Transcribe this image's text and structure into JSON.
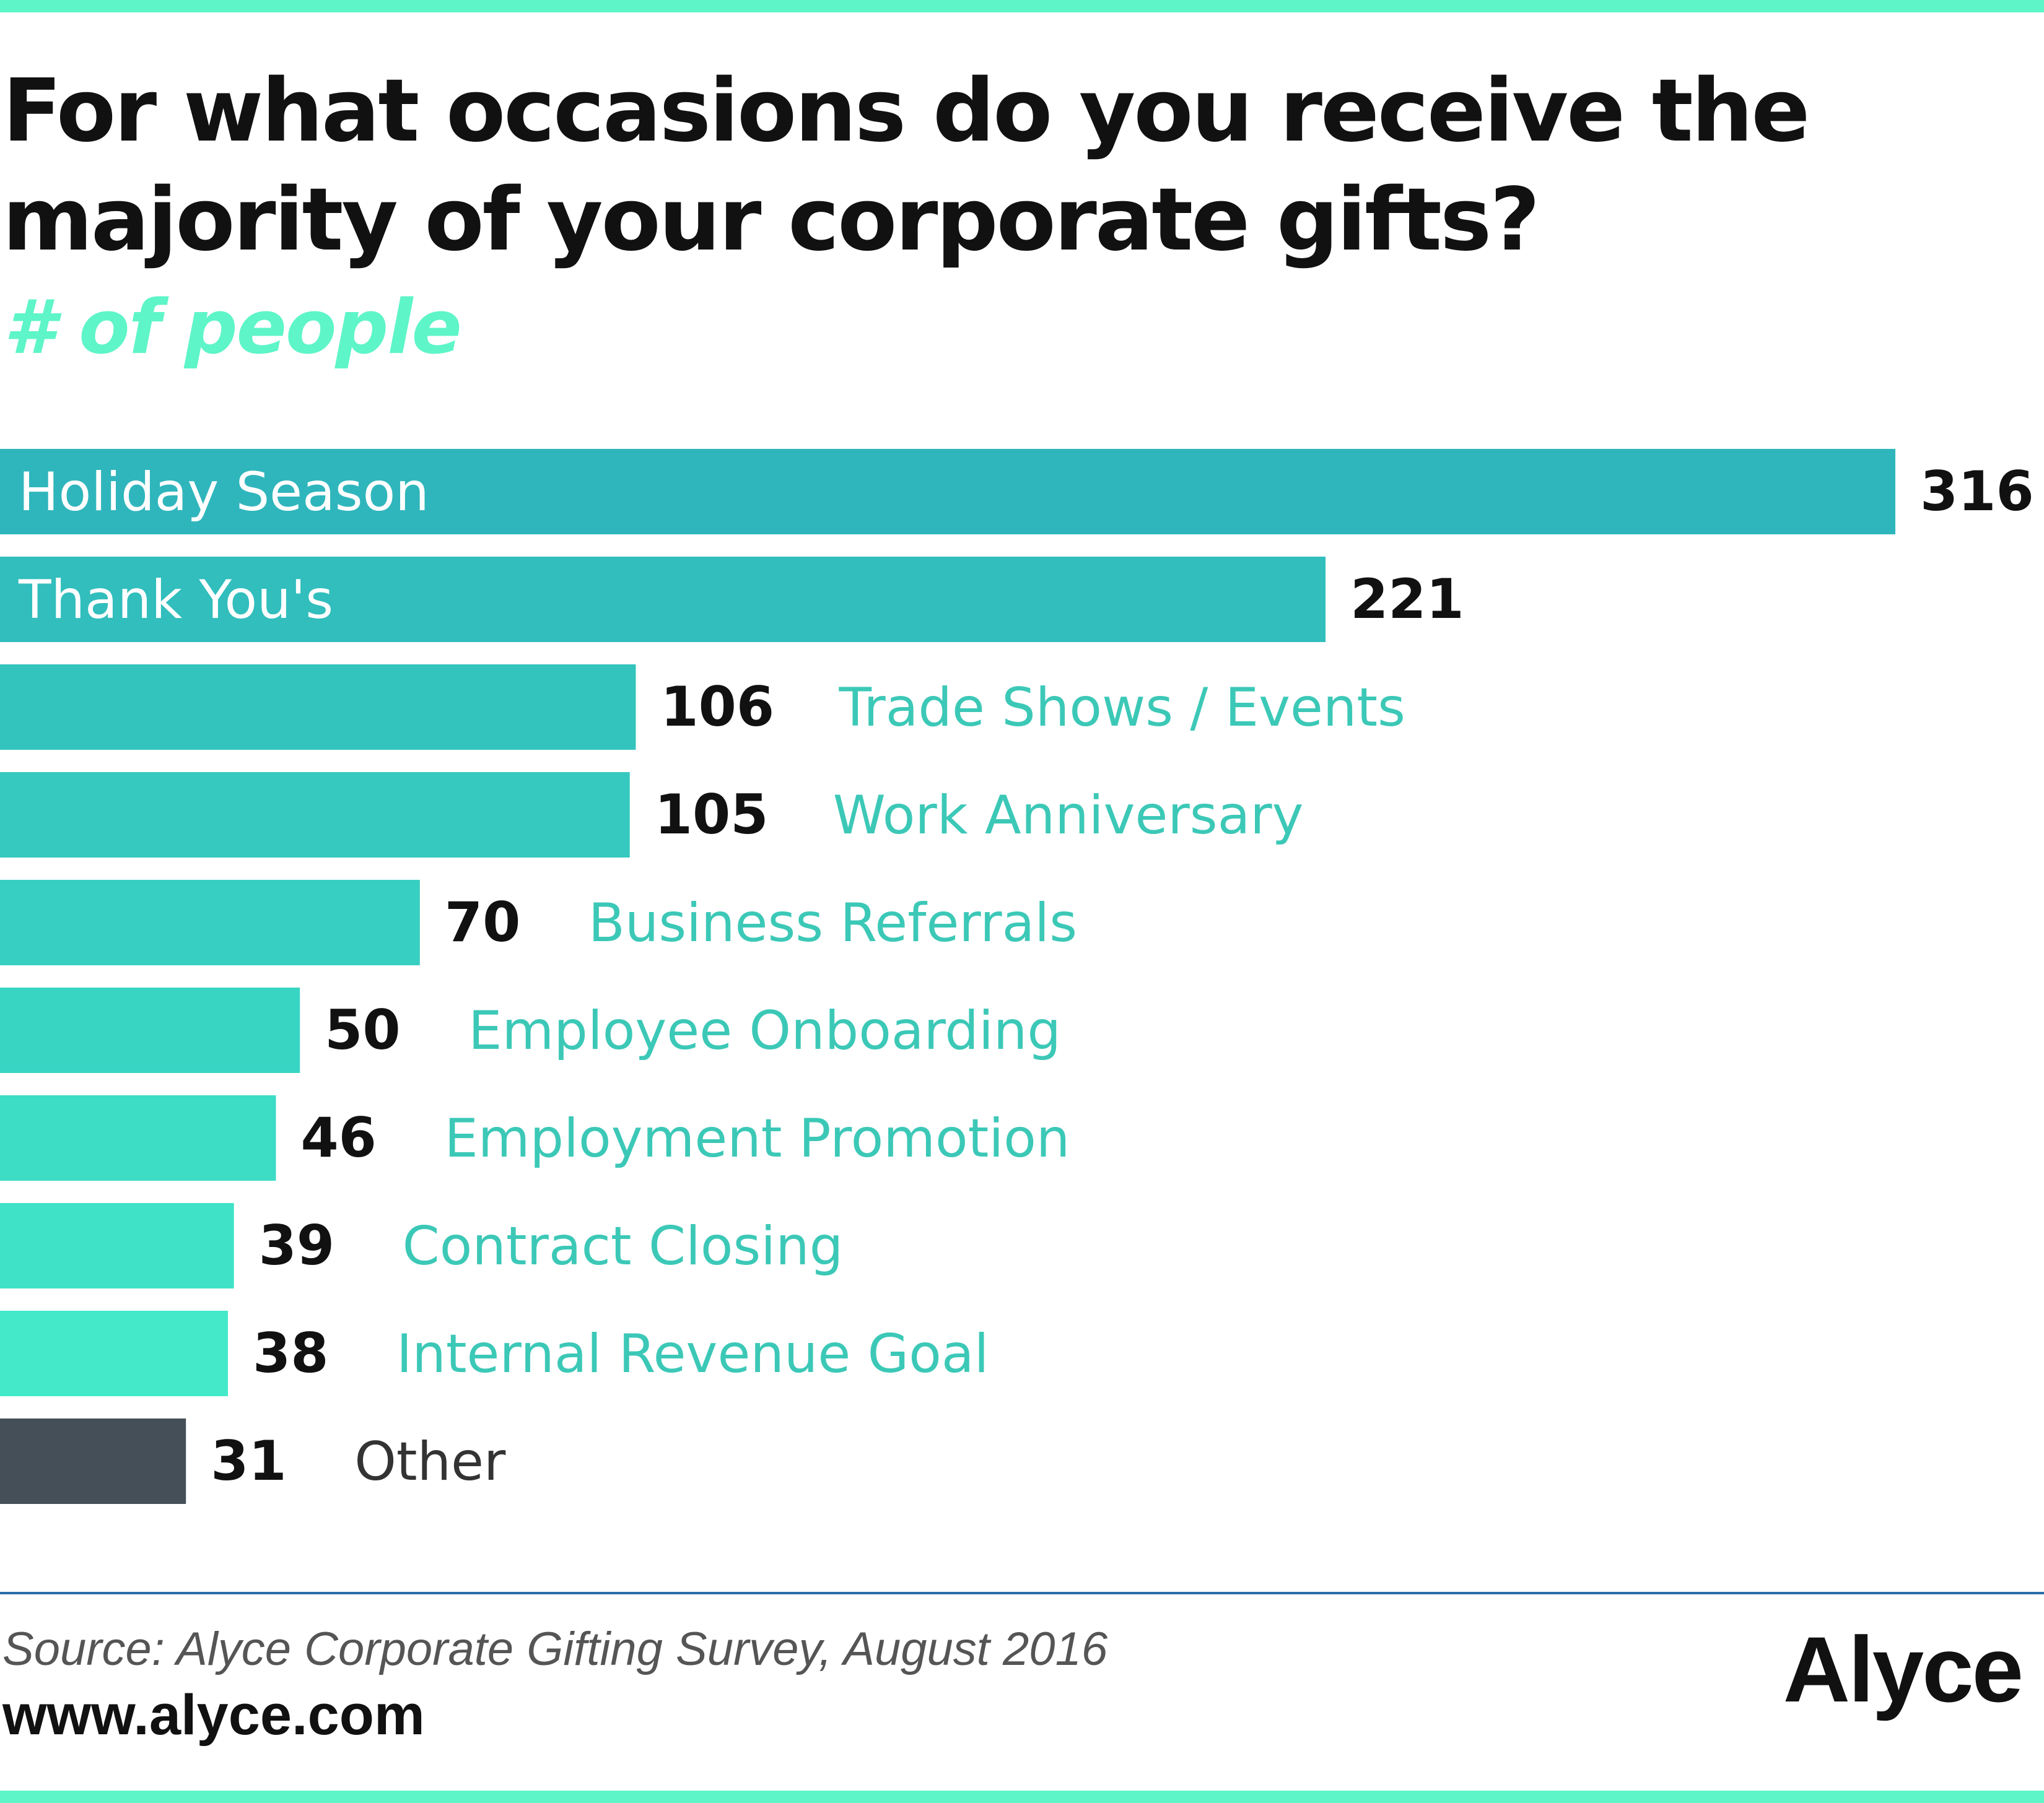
{
  "title": "For what occasions do you receive the majority of your corporate gifts?",
  "subtitle": "# of people",
  "source": "Source: Alyce Corporate Gifting Survey, August 2016",
  "url": "www.alyce.com",
  "logo": "Alyce",
  "colors": {
    "accent": "#5ef5c8",
    "other": "#444f57",
    "value_text": "#111111",
    "label_outside": "#3cc8b7",
    "label_inside": "#ffffff",
    "divider": "#2a6ea8"
  },
  "chart_data": {
    "type": "bar",
    "orientation": "horizontal",
    "title": "For what occasions do you receive the majority of your corporate gifts?",
    "subtitle": "# of people",
    "categories": [
      "Holiday Season",
      "Thank You's",
      "Trade Shows / Events",
      "Work Anniversary",
      "Business Referrals",
      "Employee Onboarding",
      "Employment Promotion",
      "Contract Closing",
      "Internal Revenue Goal",
      "Other"
    ],
    "values": [
      316,
      221,
      106,
      105,
      70,
      50,
      46,
      39,
      38,
      31
    ],
    "bar_colors": [
      "#2fb6bc",
      "#31bebd",
      "#33c4bd",
      "#35c9bf",
      "#37cfc1",
      "#39d5c3",
      "#3cdcc5",
      "#3fe2c7",
      "#43e9c9",
      "#444f57"
    ],
    "label_inside_bar": [
      true,
      true,
      false,
      false,
      false,
      false,
      false,
      false,
      false,
      false
    ],
    "xlim": [
      0,
      316
    ],
    "grid": false,
    "legend": "none"
  }
}
